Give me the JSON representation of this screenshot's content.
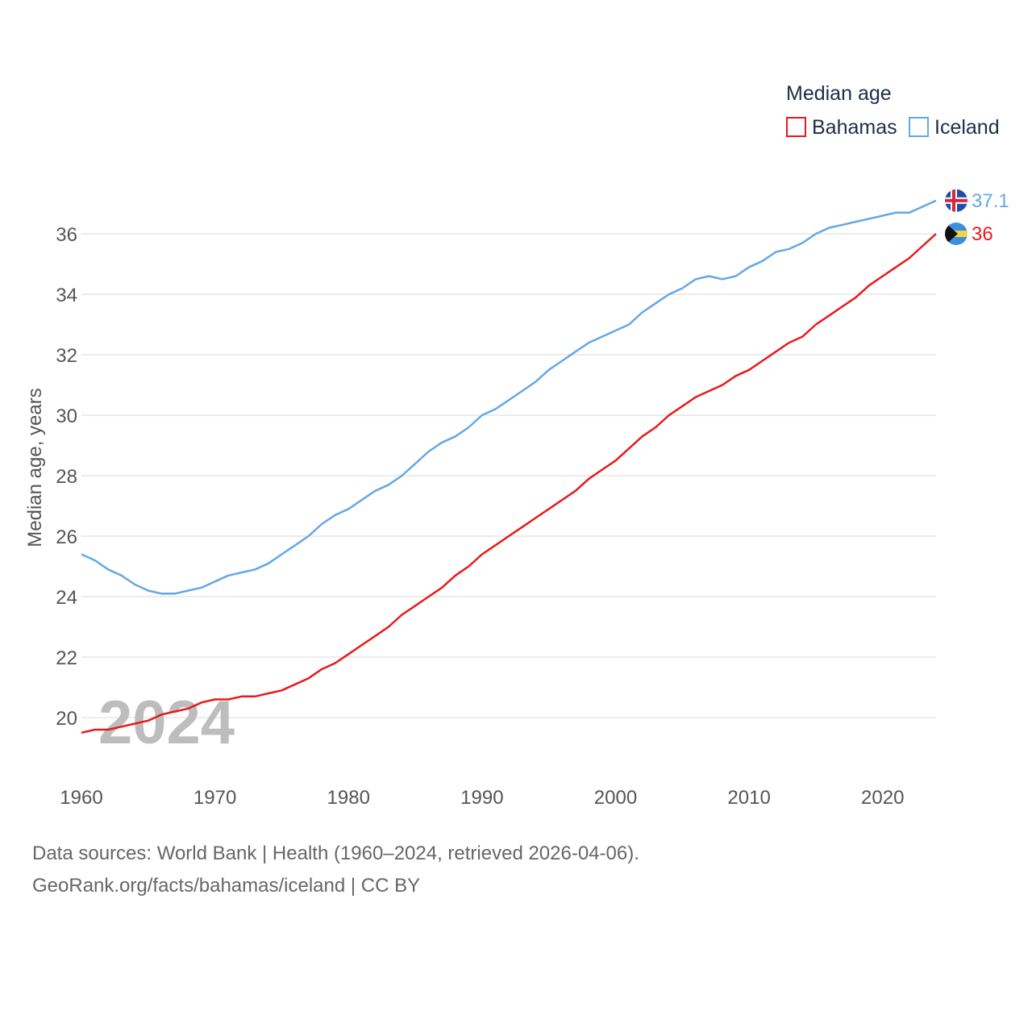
{
  "chart_data": {
    "type": "line",
    "title": "",
    "xlabel": "",
    "ylabel": "Median age, years",
    "xlim": [
      1960,
      2024
    ],
    "ylim": [
      19,
      37.5
    ],
    "xticks": [
      1960,
      1970,
      1980,
      1990,
      2000,
      2010,
      2020
    ],
    "yticks": [
      20,
      22,
      24,
      26,
      28,
      30,
      32,
      34,
      36
    ],
    "grid": true,
    "legend": {
      "title": "Median age",
      "placement": "top-right"
    },
    "watermark_year": "2024",
    "x": [
      1960,
      1961,
      1962,
      1963,
      1964,
      1965,
      1966,
      1967,
      1968,
      1969,
      1970,
      1971,
      1972,
      1973,
      1974,
      1975,
      1976,
      1977,
      1978,
      1979,
      1980,
      1981,
      1982,
      1983,
      1984,
      1985,
      1986,
      1987,
      1988,
      1989,
      1990,
      1991,
      1992,
      1993,
      1994,
      1995,
      1996,
      1997,
      1998,
      1999,
      2000,
      2001,
      2002,
      2003,
      2004,
      2005,
      2006,
      2007,
      2008,
      2009,
      2010,
      2011,
      2012,
      2013,
      2014,
      2015,
      2016,
      2017,
      2018,
      2019,
      2020,
      2021,
      2022,
      2023,
      2024
    ],
    "series": [
      {
        "name": "Bahamas",
        "color": "#e8191c",
        "end_label": "36",
        "flag": "bahamas-flag",
        "values": [
          19.5,
          19.6,
          19.6,
          19.7,
          19.8,
          19.9,
          20.1,
          20.2,
          20.3,
          20.5,
          20.6,
          20.6,
          20.7,
          20.7,
          20.8,
          20.9,
          21.1,
          21.3,
          21.6,
          21.8,
          22.1,
          22.4,
          22.7,
          23.0,
          23.4,
          23.7,
          24.0,
          24.3,
          24.7,
          25.0,
          25.4,
          25.7,
          26.0,
          26.3,
          26.6,
          26.9,
          27.2,
          27.5,
          27.9,
          28.2,
          28.5,
          28.9,
          29.3,
          29.6,
          30.0,
          30.3,
          30.6,
          30.8,
          31.0,
          31.3,
          31.5,
          31.8,
          32.1,
          32.4,
          32.6,
          33.0,
          33.3,
          33.6,
          33.9,
          34.3,
          34.6,
          34.9,
          35.2,
          35.6,
          36.0
        ]
      },
      {
        "name": "Iceland",
        "color": "#64a8e6",
        "end_label": "37.1",
        "flag": "iceland-flag",
        "values": [
          25.4,
          25.2,
          24.9,
          24.7,
          24.4,
          24.2,
          24.1,
          24.1,
          24.2,
          24.3,
          24.5,
          24.7,
          24.8,
          24.9,
          25.1,
          25.4,
          25.7,
          26.0,
          26.4,
          26.7,
          26.9,
          27.2,
          27.5,
          27.7,
          28.0,
          28.4,
          28.8,
          29.1,
          29.3,
          29.6,
          30.0,
          30.2,
          30.5,
          30.8,
          31.1,
          31.5,
          31.8,
          32.1,
          32.4,
          32.6,
          32.8,
          33.0,
          33.4,
          33.7,
          34.0,
          34.2,
          34.5,
          34.6,
          34.5,
          34.6,
          34.9,
          35.1,
          35.4,
          35.5,
          35.7,
          36.0,
          36.2,
          36.3,
          36.4,
          36.5,
          36.6,
          36.7,
          36.7,
          36.9,
          37.1
        ]
      }
    ]
  },
  "footer": {
    "source_line": "Data sources: World Bank | Health (1960–2024, retrieved 2026-04-06).",
    "attribution_line": "GeoRank.org/facts/bahamas/iceland | CC BY"
  }
}
